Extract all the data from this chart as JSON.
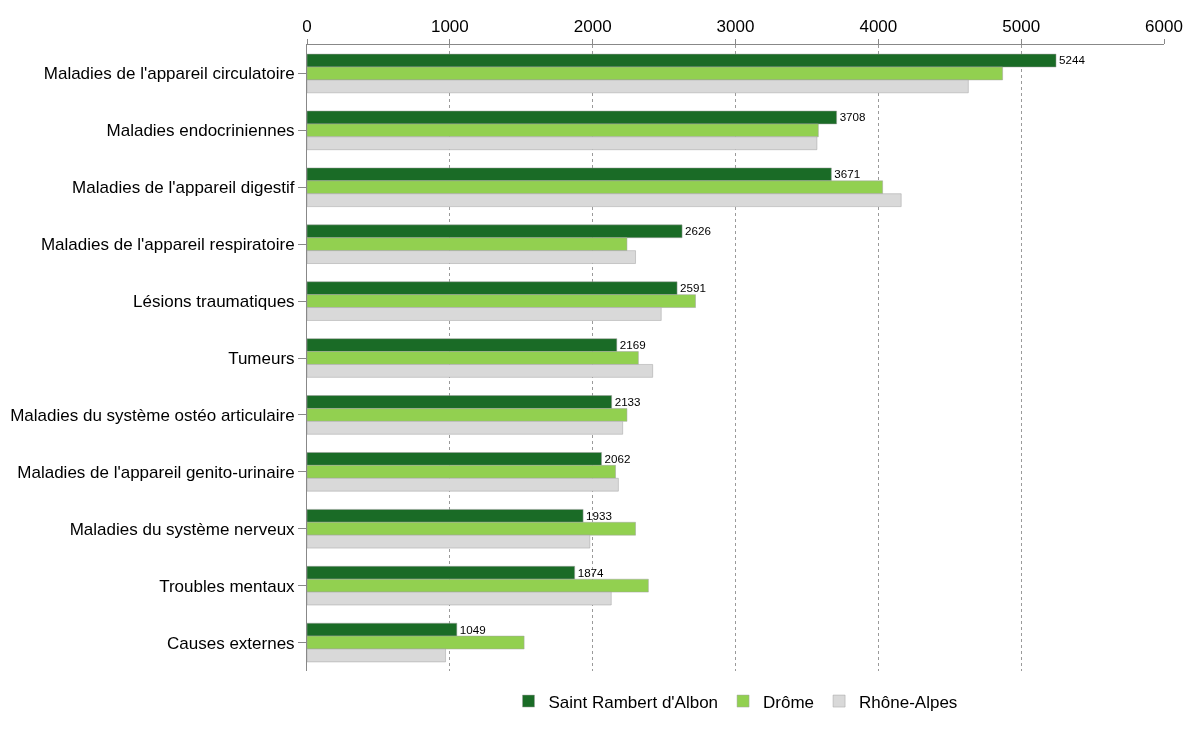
{
  "chart_data": {
    "type": "bar",
    "orientation": "horizontal",
    "categories": [
      "Maladies de l'appareil circulatoire",
      "Maladies endocriniennes",
      "Maladies de l'appareil digestif",
      "Maladies de l'appareil respiratoire",
      "Lésions traumatiques",
      "Tumeurs",
      "Maladies du système ostéo articulaire",
      "Maladies de l'appareil genito-urinaire",
      "Maladies du système nerveux",
      "Troubles mentaux",
      "Causes externes"
    ],
    "series": [
      {
        "name": "Saint Rambert d'Albon",
        "color": "#1a6b26",
        "values": [
          5244,
          3708,
          3671,
          2626,
          2591,
          2169,
          2133,
          2062,
          1933,
          1874,
          1049
        ],
        "value_labels": [
          "5244",
          "3708",
          "3671",
          "2626",
          "2591",
          "2169",
          "2133",
          "2062",
          "1933",
          "1874",
          "1049"
        ]
      },
      {
        "name": "Drôme",
        "color": "#92d050",
        "values": [
          4870,
          3580,
          4030,
          2240,
          2720,
          2320,
          2240,
          2160,
          2300,
          2390,
          1520
        ]
      },
      {
        "name": "Rhône-Alpes",
        "color": "#d9d9d9",
        "values": [
          4630,
          3570,
          4160,
          2300,
          2480,
          2420,
          2210,
          2180,
          1980,
          2130,
          970
        ]
      }
    ],
    "xlim": [
      0,
      6000
    ],
    "xticks": [
      0,
      1000,
      2000,
      3000,
      4000,
      5000,
      6000
    ],
    "grid": "x",
    "legend": "bottom"
  }
}
